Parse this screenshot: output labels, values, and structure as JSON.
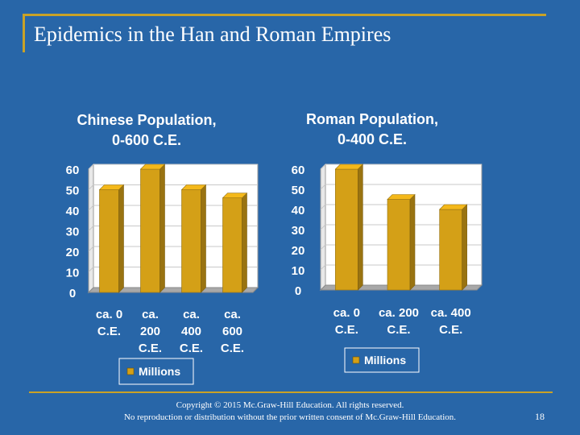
{
  "slide": {
    "title": "Epidemics in the Han and Roman Empires",
    "copyright_line1": "Copyright © 2015 Mc.Graw-Hill Education. All rights reserved.",
    "copyright_line2": "No reproduction or distribution without the prior written consent of Mc.Graw-Hill Education.",
    "page_number": "18"
  },
  "chart_data": [
    {
      "type": "bar",
      "title_lines": [
        "Chinese Population,",
        "0-600 C.E."
      ],
      "categories": [
        [
          "ca. 0",
          "C.E."
        ],
        [
          "ca.",
          "200",
          "C.E."
        ],
        [
          "ca.",
          "400",
          "C.E."
        ],
        [
          "ca.",
          "600",
          "C.E."
        ]
      ],
      "series": [
        {
          "name": "Millions",
          "values": [
            50,
            60,
            50,
            46
          ]
        }
      ],
      "ylim": [
        0,
        60
      ],
      "yticks": [
        "0",
        "10",
        "20",
        "30",
        "40",
        "50",
        "60"
      ],
      "grid": true,
      "legend_position": "bottom",
      "bar_color": "#d4a017"
    },
    {
      "type": "bar",
      "title_lines": [
        "Roman Population,",
        "0-400 C.E."
      ],
      "categories": [
        [
          "ca. 0",
          "C.E."
        ],
        [
          "ca. 200",
          "C.E."
        ],
        [
          "ca. 400",
          "C.E."
        ]
      ],
      "series": [
        {
          "name": "Millions",
          "values": [
            60,
            45,
            40
          ]
        }
      ],
      "ylim": [
        0,
        60
      ],
      "yticks": [
        "0",
        "10",
        "20",
        "30",
        "40",
        "50",
        "60"
      ],
      "grid": true,
      "legend_position": "bottom",
      "bar_color": "#d4a017"
    }
  ]
}
